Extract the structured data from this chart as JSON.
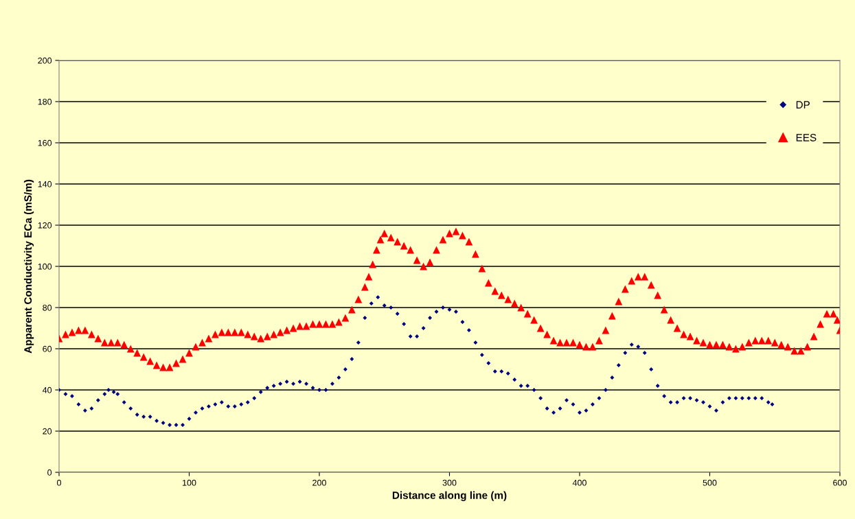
{
  "chart_data": {
    "type": "scatter",
    "xlabel": "Distance along line (m)",
    "ylabel": "Apparent Conductivity ECa (mS/m)",
    "xlim": [
      0,
      600
    ],
    "ylim": [
      0,
      200
    ],
    "xticks": [
      0,
      100,
      200,
      300,
      400,
      500,
      600
    ],
    "yticks": [
      0,
      20,
      40,
      60,
      80,
      100,
      120,
      140,
      160,
      180,
      200
    ],
    "grid": "y",
    "legend": "top right",
    "series": [
      {
        "name": "DP",
        "color": "#000080",
        "marker": "diamond",
        "x": [
          0,
          5,
          10,
          15,
          20,
          25,
          30,
          35,
          38,
          42,
          45,
          50,
          55,
          60,
          65,
          70,
          75,
          80,
          85,
          90,
          95,
          100,
          105,
          110,
          115,
          120,
          125,
          130,
          135,
          140,
          145,
          150,
          155,
          160,
          165,
          170,
          175,
          180,
          185,
          190,
          195,
          200,
          205,
          210,
          215,
          220,
          225,
          230,
          235,
          240,
          245,
          250,
          255,
          260,
          265,
          270,
          275,
          280,
          285,
          290,
          295,
          300,
          305,
          310,
          315,
          320,
          325,
          330,
          335,
          340,
          345,
          350,
          355,
          360,
          365,
          370,
          375,
          380,
          385,
          390,
          395,
          400,
          405,
          410,
          415,
          420,
          425,
          430,
          435,
          440,
          445,
          450,
          455,
          460,
          465,
          470,
          475,
          480,
          485,
          490,
          495,
          500,
          505,
          510,
          515,
          520,
          525,
          530,
          535,
          540,
          545,
          548
        ],
        "values": [
          40,
          38,
          37,
          33,
          30,
          31,
          35,
          38,
          40,
          39,
          38,
          34,
          31,
          28,
          27,
          27,
          25,
          24,
          23,
          23,
          23,
          26,
          29,
          31,
          32,
          33,
          34,
          32,
          32,
          33,
          34,
          36,
          39,
          41,
          42,
          43,
          44,
          43,
          44,
          43,
          41,
          40,
          40,
          43,
          46,
          50,
          55,
          63,
          75,
          82,
          85,
          81,
          80,
          77,
          72,
          66,
          66,
          70,
          75,
          78,
          80,
          79,
          78,
          73,
          69,
          63,
          57,
          53,
          49,
          49,
          48,
          45,
          42,
          42,
          40,
          36,
          31,
          29,
          31,
          35,
          33,
          29,
          30,
          33,
          36,
          40,
          46,
          52,
          58,
          62,
          61,
          58,
          50,
          42,
          37,
          34,
          34,
          36,
          36,
          35,
          34,
          32,
          30,
          34,
          36,
          36,
          36,
          36,
          36,
          36,
          34,
          33
        ]
      },
      {
        "name": "EES",
        "color": "#ff0000",
        "marker": "triangle",
        "x": [
          0,
          5,
          10,
          15,
          20,
          25,
          30,
          35,
          40,
          45,
          50,
          55,
          60,
          65,
          70,
          75,
          80,
          85,
          90,
          95,
          100,
          105,
          110,
          115,
          120,
          125,
          130,
          135,
          140,
          145,
          150,
          155,
          160,
          165,
          170,
          175,
          180,
          185,
          190,
          195,
          200,
          205,
          210,
          215,
          220,
          225,
          230,
          235,
          238,
          241,
          244,
          247,
          250,
          255,
          260,
          265,
          270,
          275,
          280,
          285,
          290,
          295,
          300,
          305,
          310,
          315,
          320,
          325,
          330,
          335,
          340,
          345,
          350,
          355,
          360,
          365,
          370,
          375,
          380,
          385,
          390,
          395,
          400,
          405,
          410,
          415,
          420,
          425,
          430,
          435,
          440,
          445,
          450,
          455,
          460,
          465,
          470,
          475,
          480,
          485,
          490,
          495,
          500,
          505,
          510,
          515,
          520,
          525,
          530,
          535,
          540,
          545,
          550,
          555,
          560,
          565,
          570,
          575,
          580,
          585,
          590,
          595,
          598,
          600
        ],
        "values": [
          65,
          67,
          68,
          69,
          69,
          67,
          65,
          63,
          63,
          63,
          62,
          60,
          58,
          56,
          54,
          52,
          51,
          51,
          53,
          55,
          58,
          61,
          63,
          65,
          67,
          68,
          68,
          68,
          68,
          67,
          66,
          65,
          66,
          67,
          68,
          69,
          70,
          71,
          71,
          72,
          72,
          72,
          72,
          73,
          75,
          79,
          84,
          90,
          95,
          101,
          108,
          113,
          116,
          114,
          112,
          110,
          108,
          103,
          100,
          102,
          108,
          113,
          116,
          117,
          115,
          112,
          106,
          99,
          92,
          88,
          86,
          84,
          82,
          80,
          77,
          74,
          70,
          67,
          64,
          63,
          63,
          63,
          62,
          61,
          61,
          64,
          69,
          76,
          83,
          89,
          93,
          95,
          95,
          91,
          86,
          79,
          74,
          70,
          67,
          66,
          64,
          63,
          62,
          62,
          62,
          61,
          60,
          61,
          63,
          64,
          64,
          64,
          63,
          62,
          61,
          59,
          59,
          61,
          66,
          72,
          77,
          77,
          74,
          69
        ]
      }
    ]
  }
}
